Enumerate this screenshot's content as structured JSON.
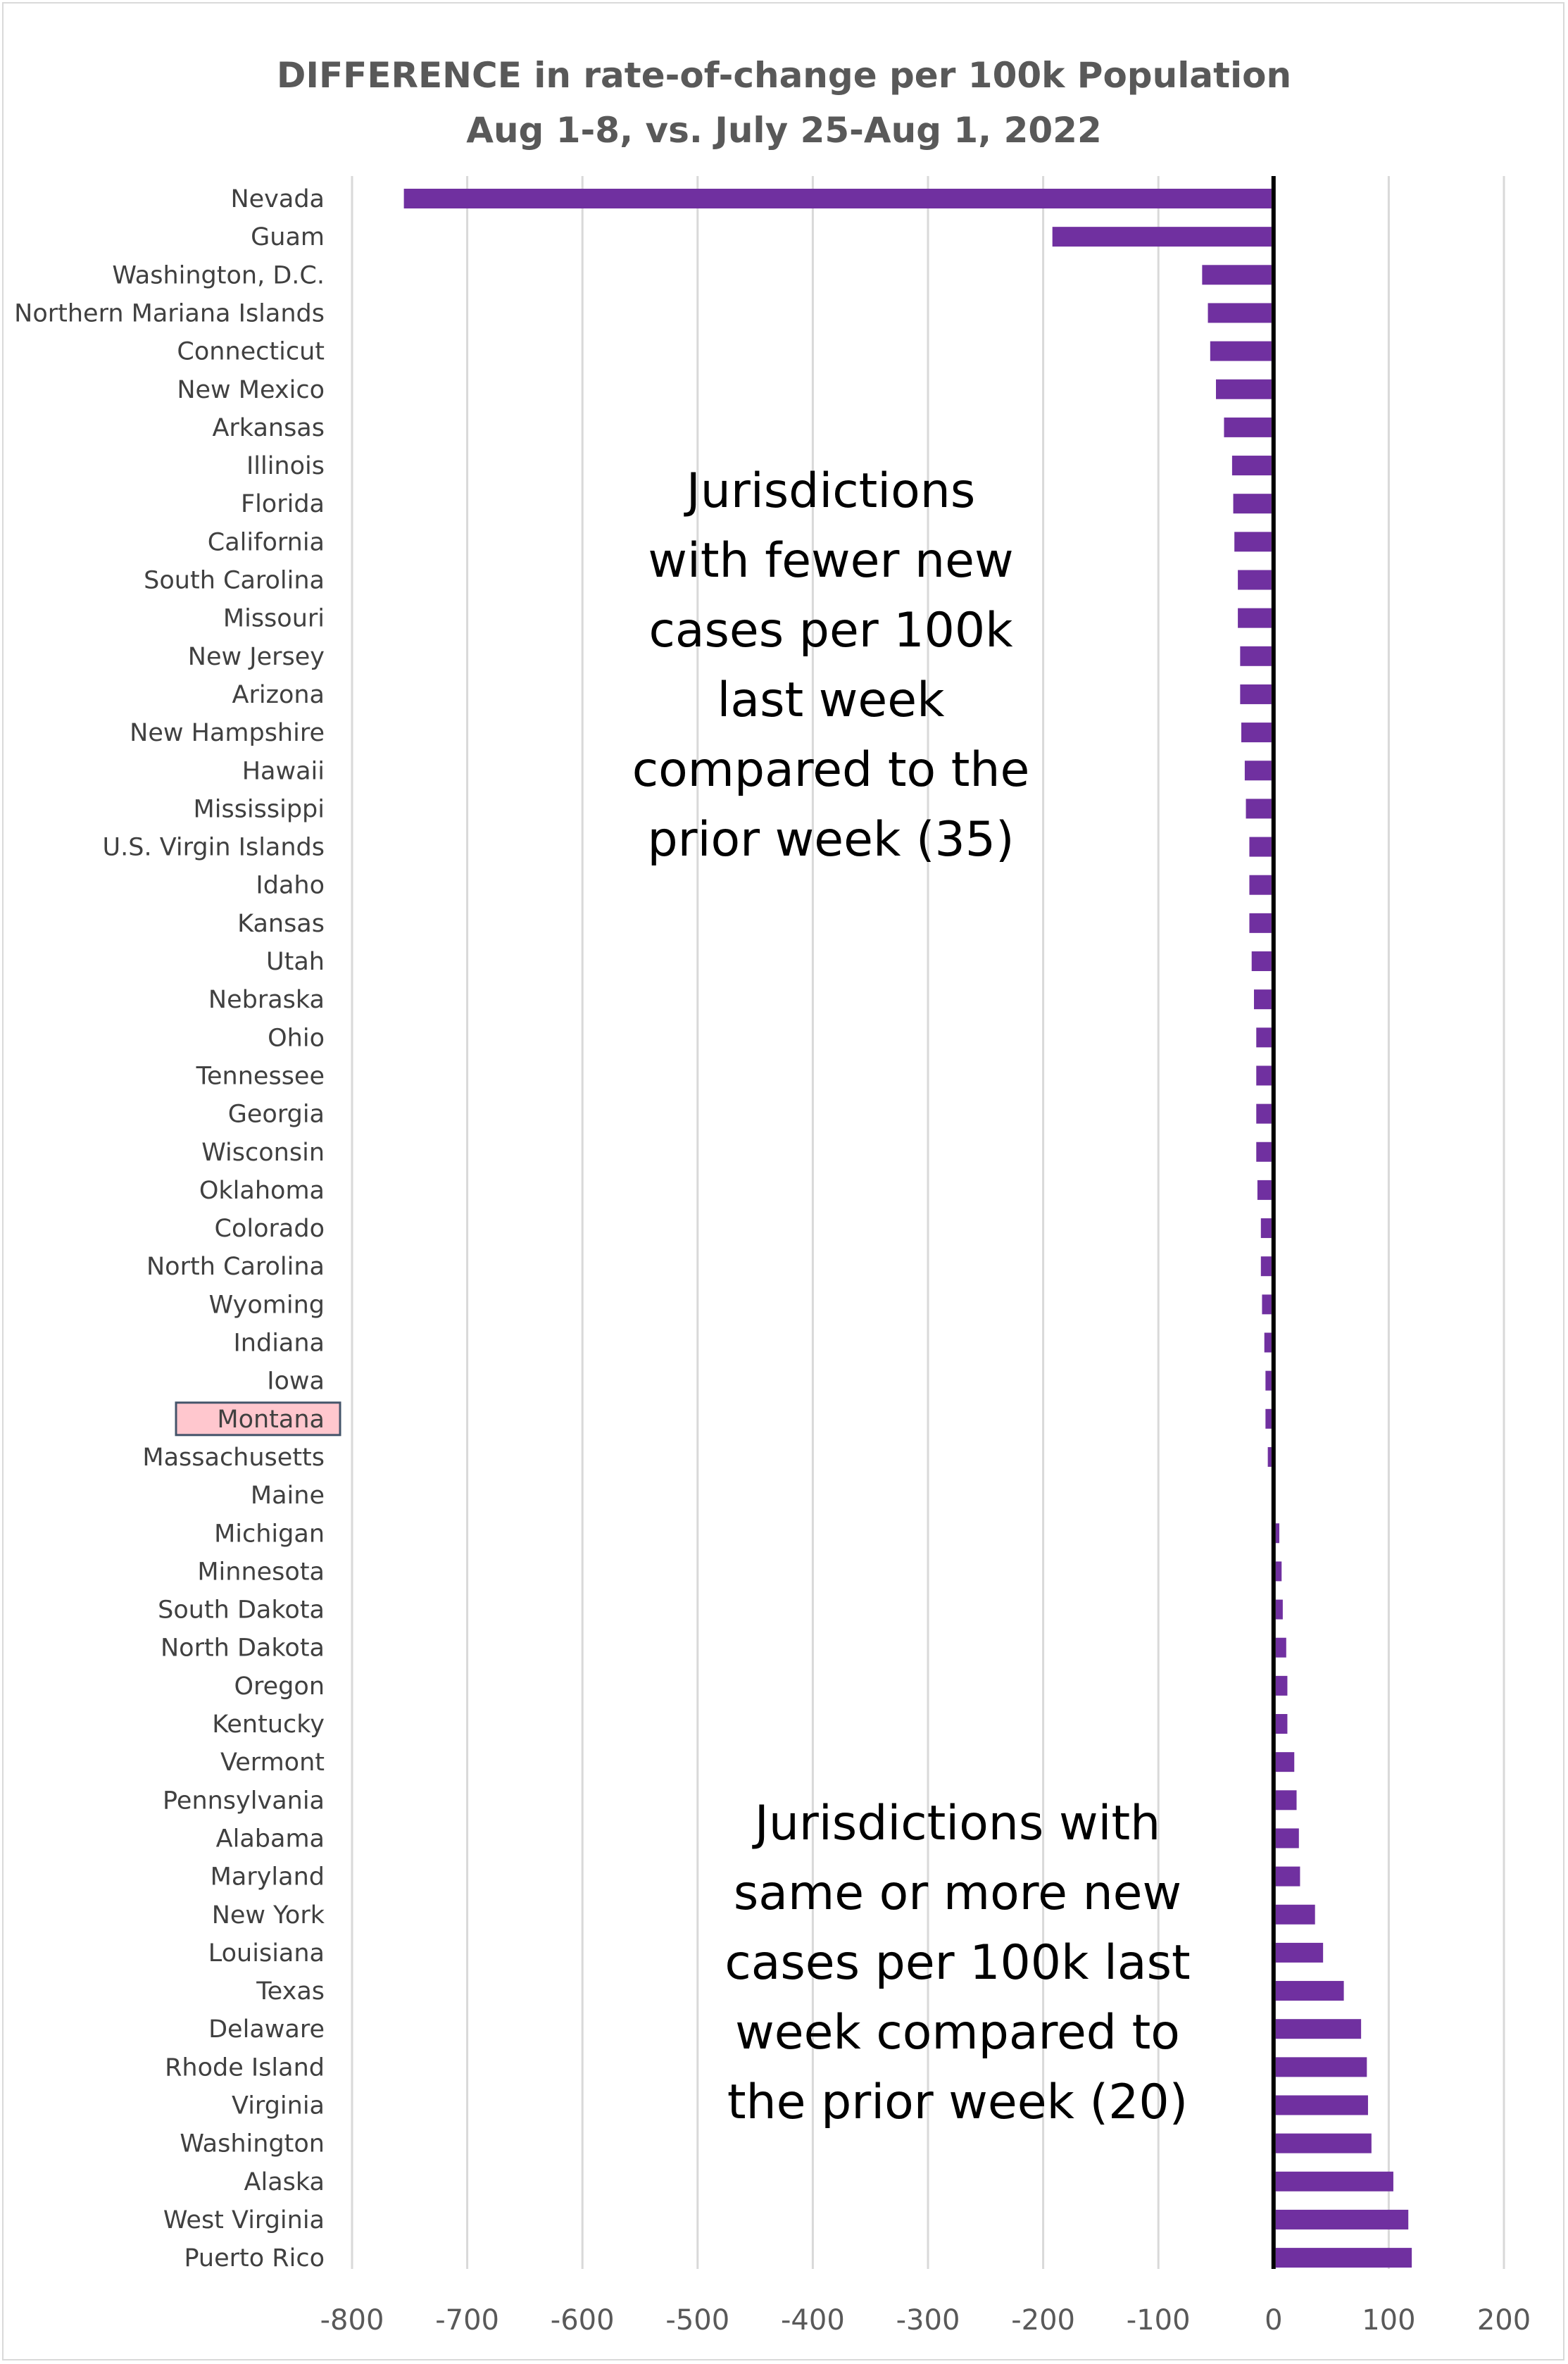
{
  "chart_data": {
    "type": "bar",
    "orientation": "horizontal",
    "title": "DIFFERENCE in rate-of-change per 100k Population",
    "subtitle": "Aug 1-8, vs. July 25-Aug 1, 2022",
    "xlim": [
      -800,
      200
    ],
    "x_ticks": [
      "-800",
      "-700",
      "-600",
      "-500",
      "-400",
      "-300",
      "-200",
      "-100",
      "0",
      "100",
      "200"
    ],
    "x_tick_values": [
      -800,
      -700,
      -600,
      -500,
      -400,
      -300,
      -200,
      -100,
      0,
      100,
      200
    ],
    "grid": "vertical",
    "bar_color": "#7030a0",
    "highlighted_category": "Montana",
    "highlight_color": "#ffc7ce",
    "categories": [
      "Nevada",
      "Guam",
      "Washington, D.C.",
      "Northern Mariana Islands",
      "Connecticut",
      "New Mexico",
      "Arkansas",
      "Illinois",
      "Florida",
      "California",
      "South Carolina",
      "Missouri",
      "New Jersey",
      "Arizona",
      "New Hampshire",
      "Hawaii",
      "Mississippi",
      "U.S. Virgin Islands",
      "Idaho",
      "Kansas",
      "Utah",
      "Nebraska",
      "Ohio",
      "Tennessee",
      "Georgia",
      "Wisconsin",
      "Oklahoma",
      "Colorado",
      "North Carolina",
      "Wyoming",
      "Indiana",
      "Iowa",
      "Montana",
      "Massachusetts",
      "Maine",
      "Michigan",
      "Minnesota",
      "South Dakota",
      "North Dakota",
      "Oregon",
      "Kentucky",
      "Vermont",
      "Pennsylvania",
      "Alabama",
      "Maryland",
      "New York",
      "Louisiana",
      "Texas",
      "Delaware",
      "Rhode Island",
      "Virginia",
      "Washington",
      "Alaska",
      "West Virginia",
      "Puerto Rico"
    ],
    "values": [
      -755,
      -192,
      -62,
      -57,
      -55,
      -50,
      -43,
      -36,
      -35,
      -34,
      -31,
      -31,
      -29,
      -29,
      -28,
      -25,
      -24,
      -21,
      -21,
      -21,
      -19,
      -17,
      -15,
      -15,
      -15,
      -15,
      -14,
      -11,
      -11,
      -10,
      -8,
      -7,
      -7,
      -5,
      0,
      5,
      7,
      8,
      11,
      12,
      12,
      18,
      20,
      22,
      23,
      36,
      43,
      61,
      76,
      81,
      82,
      85,
      104,
      117,
      120
    ]
  },
  "annotations": {
    "fewer": [
      "Jurisdictions",
      "with fewer new",
      "cases per 100k",
      "last week",
      "compared to the",
      "prior week (35)"
    ],
    "more": [
      "Jurisdictions with",
      "same or more new",
      "cases per 100k last",
      "week compared to",
      "the prior week (20)"
    ]
  }
}
